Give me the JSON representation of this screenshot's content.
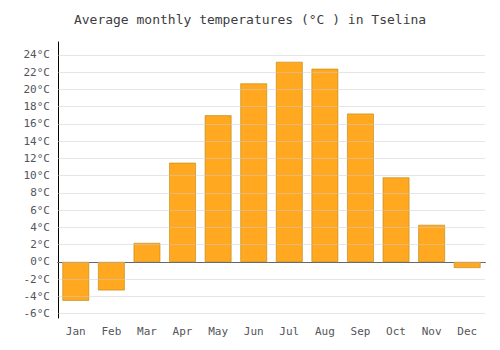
{
  "chart_data": {
    "type": "bar",
    "title": "Average monthly temperatures (°C ) in Tselina",
    "categories": [
      "Jan",
      "Feb",
      "Mar",
      "Apr",
      "May",
      "Jun",
      "Jul",
      "Aug",
      "Sep",
      "Oct",
      "Nov",
      "Dec"
    ],
    "values": [
      -4.5,
      -3.3,
      2.2,
      11.5,
      17.0,
      20.7,
      23.2,
      22.4,
      17.2,
      9.8,
      4.3,
      -0.7
    ],
    "color": "#FFA820",
    "ylim": [
      -6.5,
      25.5
    ],
    "yticks": [
      {
        "value": -6,
        "label": "-6°C"
      },
      {
        "value": -4,
        "label": "-4°C"
      },
      {
        "value": -2,
        "label": "-2°C"
      },
      {
        "value": 0,
        "label": "0°C"
      },
      {
        "value": 2,
        "label": "2°C"
      },
      {
        "value": 4,
        "label": "4°C"
      },
      {
        "value": 6,
        "label": "6°C"
      },
      {
        "value": 8,
        "label": "8°C"
      },
      {
        "value": 10,
        "label": "10°C"
      },
      {
        "value": 12,
        "label": "12°C"
      },
      {
        "value": 14,
        "label": "14°C"
      },
      {
        "value": 16,
        "label": "16°C"
      },
      {
        "value": 18,
        "label": "18°C"
      },
      {
        "value": 20,
        "label": "20°C"
      },
      {
        "value": 22,
        "label": "22°C"
      },
      {
        "value": 24,
        "label": "24°C"
      }
    ],
    "grid": true
  }
}
